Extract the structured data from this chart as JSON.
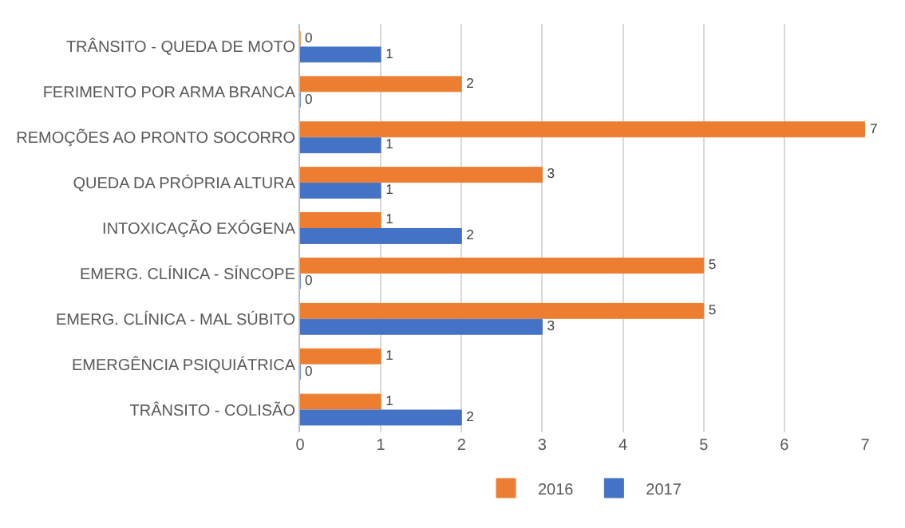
{
  "chart_data": {
    "type": "bar",
    "orientation": "horizontal",
    "categories": [
      "TRÂNSITO - QUEDA DE MOTO",
      "FERIMENTO POR ARMA BRANCA",
      "REMOÇÕES AO PRONTO SOCORRO",
      "QUEDA DA PRÓPRIA ALTURA",
      "INTOXICAÇÃO EXÓGENA",
      "EMERG. CLÍNICA - SÍNCOPE",
      "EMERG. CLÍNICA - MAL SÚBITO",
      "EMERGÊNCIA PSIQUIÁTRICA",
      "TRÂNSITO - COLISÃO"
    ],
    "series": [
      {
        "name": "2016",
        "color": "#ed7d31",
        "values": [
          0,
          2,
          7,
          3,
          1,
          5,
          5,
          1,
          1
        ]
      },
      {
        "name": "2017",
        "color": "#4472c4",
        "values": [
          1,
          0,
          1,
          1,
          2,
          0,
          3,
          0,
          2
        ]
      }
    ],
    "xlim": [
      0,
      7
    ],
    "xticks": [
      0,
      1,
      2,
      3,
      4,
      5,
      6,
      7
    ],
    "grid": "x",
    "legend": "bottom",
    "data_labels": true
  }
}
